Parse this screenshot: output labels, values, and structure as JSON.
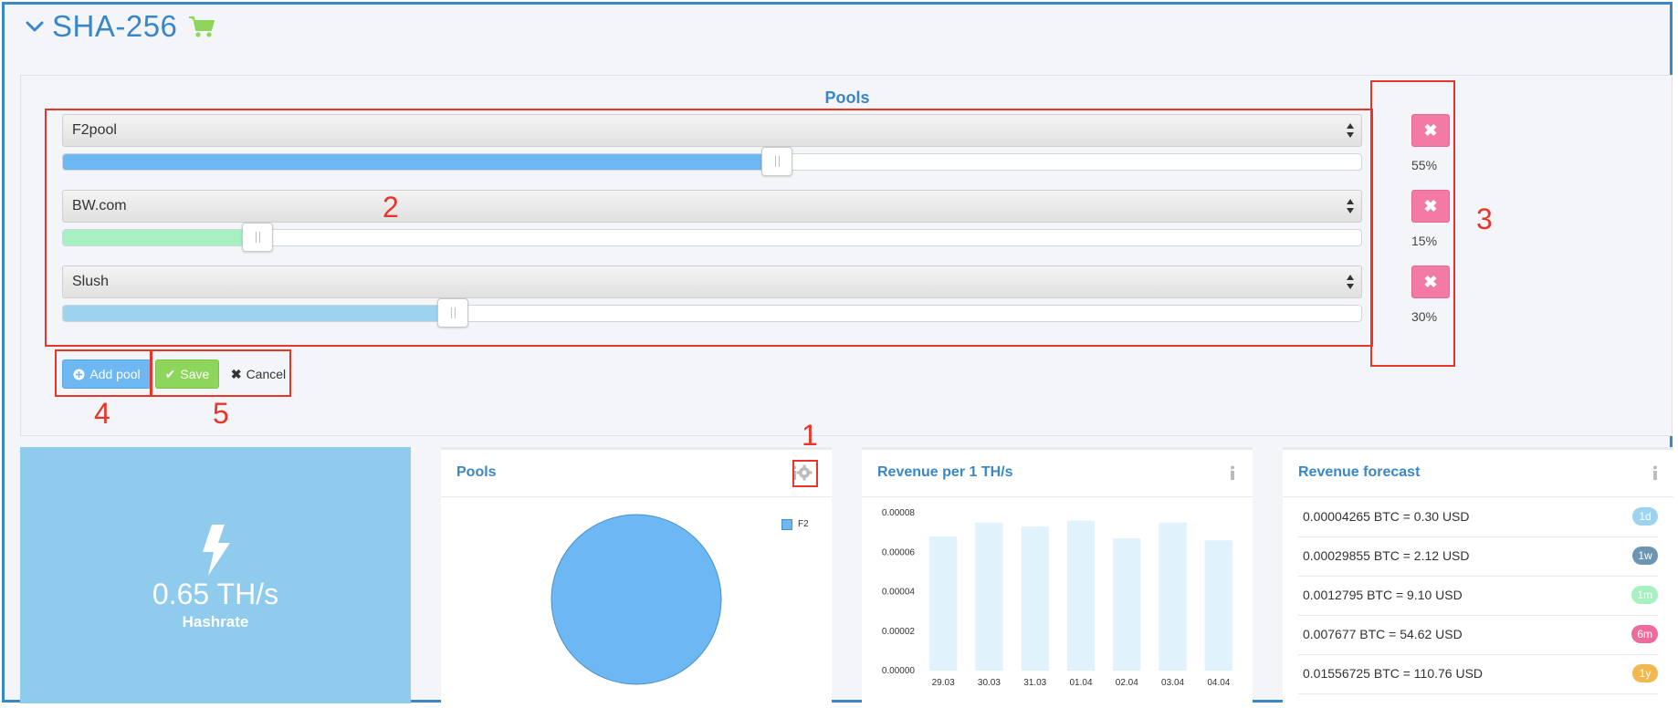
{
  "header": {
    "title": "SHA-256",
    "cart_icon": "cart-icon",
    "accent": "#3a87c8"
  },
  "pools_panel": {
    "title": "Pools",
    "pools": [
      {
        "name": "F2pool",
        "percent": 55,
        "percent_label": "55%",
        "fill_color": "#6db8f2"
      },
      {
        "name": "BW.com",
        "percent": 15,
        "percent_label": "15%",
        "fill_color": "#a6f0c2"
      },
      {
        "name": "Slush",
        "percent": 30,
        "percent_label": "30%",
        "fill_color": "#9ed3ef"
      }
    ],
    "delete_icon": "close-icon",
    "buttons": {
      "add_pool": "Add pool",
      "save": "Save",
      "cancel": "Cancel"
    }
  },
  "annotations": [
    "1",
    "2",
    "3",
    "4",
    "5"
  ],
  "hashrate": {
    "value": "0.65 TH/s",
    "label": "Hashrate"
  },
  "pools_card": {
    "title": "Pools",
    "legend": "F2",
    "chart_data": {
      "type": "pie",
      "labels": [
        "F2"
      ],
      "values": [
        100
      ],
      "colors": [
        "#6db8f2"
      ]
    }
  },
  "revenue_card": {
    "title": "Revenue per 1 TH/s",
    "chart_data": {
      "type": "bar",
      "categories": [
        "29.03",
        "30.03",
        "31.03",
        "01.04",
        "02.04",
        "03.04",
        "04.04"
      ],
      "values": [
        6.8e-05,
        7.5e-05,
        7.3e-05,
        7.6e-05,
        6.7e-05,
        7.5e-05,
        6.6e-05
      ],
      "ylim": [
        0,
        8e-05
      ],
      "yticks": [
        "0.00000",
        "0.00002",
        "0.00004",
        "0.00006",
        "0.00008"
      ],
      "bar_color": "#e0f2fb",
      "xlabel": "",
      "ylabel": ""
    }
  },
  "forecast_card": {
    "title": "Revenue forecast",
    "rows": [
      {
        "text": "0.00004265 BTC = 0.30 USD",
        "badge": "1d",
        "color": "#9ed3ef"
      },
      {
        "text": "0.00029855 BTC = 2.12 USD",
        "badge": "1w",
        "color": "#6b95b3"
      },
      {
        "text": "0.0012795 BTC = 9.10 USD",
        "badge": "1m",
        "color": "#a6f0c2"
      },
      {
        "text": "0.007677 BTC = 54.62 USD",
        "badge": "6m",
        "color": "#ee6a9a"
      },
      {
        "text": "0.01556725 BTC = 110.76 USD",
        "badge": "1y",
        "color": "#f2b84f"
      }
    ]
  }
}
